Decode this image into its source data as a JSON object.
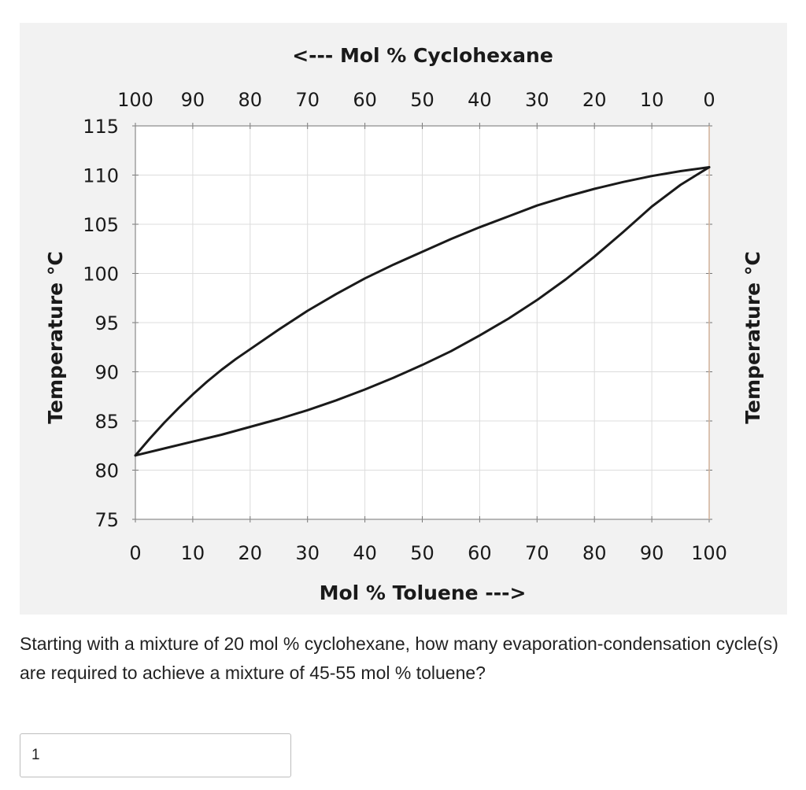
{
  "question": {
    "text": "Starting with a mixture of 20 mol % cyclohexane, how many evaporation-condensation cycle(s) are required to achieve a mixture of 45-55 mol % toluene?"
  },
  "answer": {
    "value": "1"
  },
  "chart_data": {
    "type": "line",
    "title": "",
    "xlabel": "Mol % Toluene --->",
    "x2label": "<--- Mol % Cyclohexane",
    "ylabel": "Temperature °C",
    "y2label": "Temperature °C",
    "xlim": [
      0,
      100
    ],
    "ylim": [
      75,
      115
    ],
    "x_ticks": [
      "0",
      "10",
      "20",
      "30",
      "40",
      "50",
      "60",
      "70",
      "80",
      "90",
      "100"
    ],
    "x2_ticks": [
      "100",
      "90",
      "80",
      "70",
      "60",
      "50",
      "40",
      "30",
      "20",
      "10",
      "0"
    ],
    "y_ticks": [
      "75",
      "80",
      "85",
      "90",
      "95",
      "100",
      "105",
      "110",
      "115"
    ],
    "grid": true,
    "series": [
      {
        "x": [
          0,
          2.5,
          5,
          7.5,
          10,
          12.5,
          15,
          17.5,
          20,
          25,
          30,
          35,
          40,
          45,
          50,
          55,
          60,
          65,
          70,
          75,
          80,
          85,
          90,
          95,
          100
        ],
        "y": [
          81.5,
          83.2,
          84.8,
          86.3,
          87.7,
          89.0,
          90.2,
          91.3,
          92.3,
          94.3,
          96.2,
          97.9,
          99.5,
          100.9,
          102.2,
          103.5,
          104.7,
          105.8,
          106.9,
          107.8,
          108.6,
          109.3,
          109.9,
          110.4,
          110.8
        ]
      },
      {
        "x": [
          0,
          5,
          10,
          15,
          20,
          25,
          30,
          35,
          40,
          45,
          50,
          55,
          60,
          65,
          70,
          75,
          80,
          85,
          90,
          95,
          100
        ],
        "y": [
          81.5,
          82.2,
          82.9,
          83.6,
          84.4,
          85.2,
          86.1,
          87.1,
          88.2,
          89.4,
          90.7,
          92.1,
          93.7,
          95.4,
          97.3,
          99.4,
          101.7,
          104.2,
          106.8,
          109.0,
          110.8
        ]
      }
    ]
  }
}
